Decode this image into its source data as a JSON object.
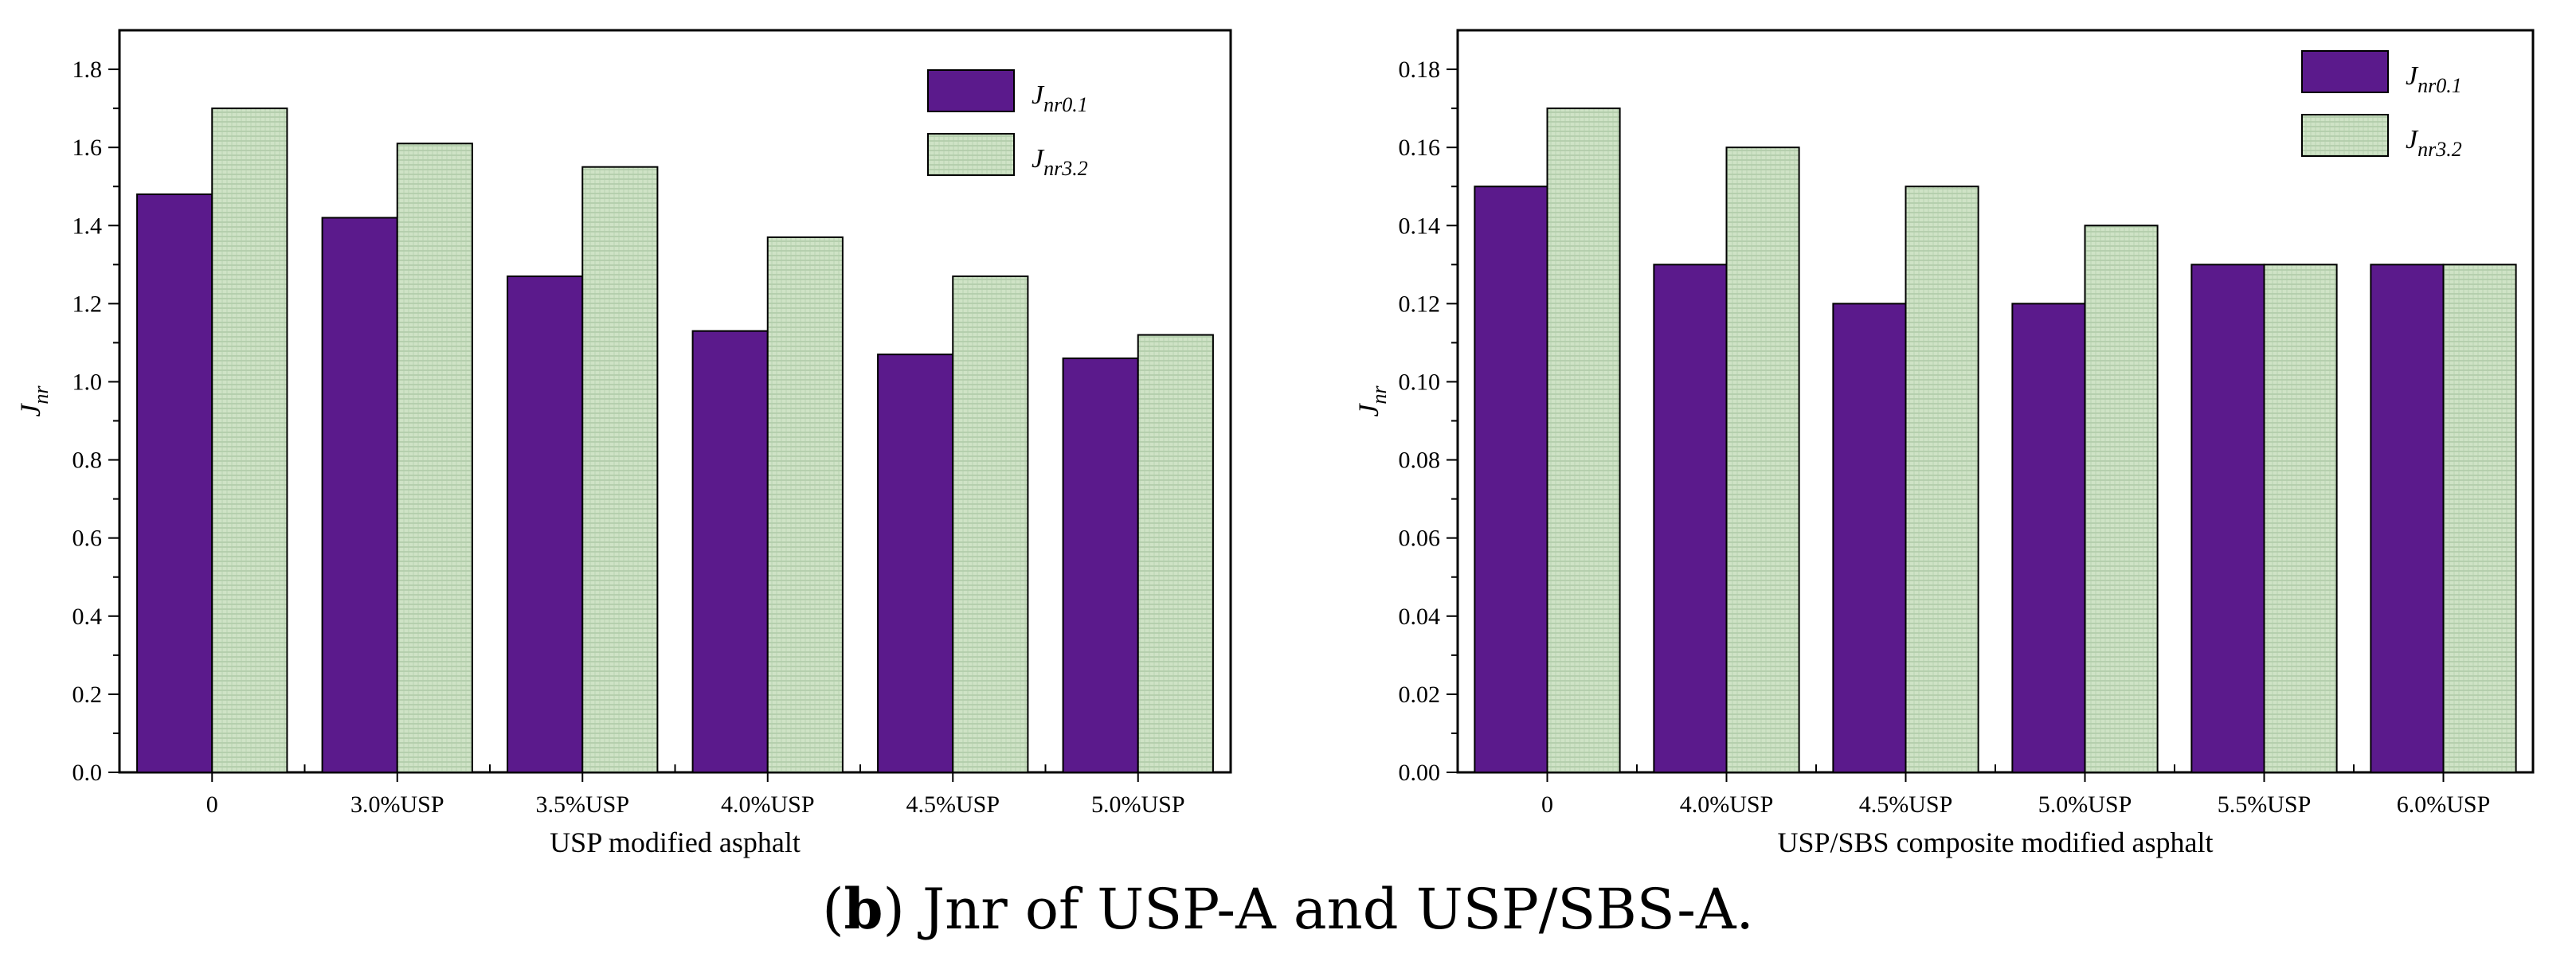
{
  "figure": {
    "caption_letter": "b",
    "caption_text": " Jnr of USP-A and USP/SBS-A.",
    "colors": {
      "series1": "#5b1a8c",
      "series2": "#cfe3c6",
      "hatch": "#9dbb95",
      "axis": "#000000"
    }
  },
  "chart_data": [
    {
      "type": "bar",
      "xlabel": "USP modified asphalt",
      "ylabel_main": "J",
      "ylabel_sub": "nr",
      "categories": [
        "0",
        "3.0%USP",
        "3.5%USP",
        "4.0%USP",
        "4.5%USP",
        "5.0%USP"
      ],
      "ylim": [
        0,
        1.9
      ],
      "yticks": [
        "0.0",
        "0.2",
        "0.4",
        "0.6",
        "0.8",
        "1.0",
        "1.2",
        "1.4",
        "1.6",
        "1.8"
      ],
      "legend_position": "top-right",
      "series": [
        {
          "name_main": "J",
          "name_sub": "nr0.1",
          "values": [
            1.48,
            1.42,
            1.27,
            1.13,
            1.07,
            1.06
          ]
        },
        {
          "name_main": "J",
          "name_sub": "nr3.2",
          "values": [
            1.7,
            1.61,
            1.55,
            1.37,
            1.27,
            1.12
          ]
        }
      ]
    },
    {
      "type": "bar",
      "xlabel": "USP/SBS composite modified asphalt",
      "ylabel_main": "J",
      "ylabel_sub": "nr",
      "categories": [
        "0",
        "4.0%USP",
        "4.5%USP",
        "5.0%USP",
        "5.5%USP",
        "6.0%USP"
      ],
      "ylim": [
        0,
        0.19
      ],
      "yticks": [
        "0.00",
        "0.02",
        "0.04",
        "0.06",
        "0.08",
        "0.10",
        "0.12",
        "0.14",
        "0.16",
        "0.18"
      ],
      "legend_position": "top-right",
      "series": [
        {
          "name_main": "J",
          "name_sub": "nr0.1",
          "values": [
            0.15,
            0.13,
            0.12,
            0.12,
            0.13,
            0.13
          ]
        },
        {
          "name_main": "J",
          "name_sub": "nr3.2",
          "values": [
            0.17,
            0.16,
            0.15,
            0.14,
            0.13,
            0.13
          ]
        }
      ]
    }
  ]
}
